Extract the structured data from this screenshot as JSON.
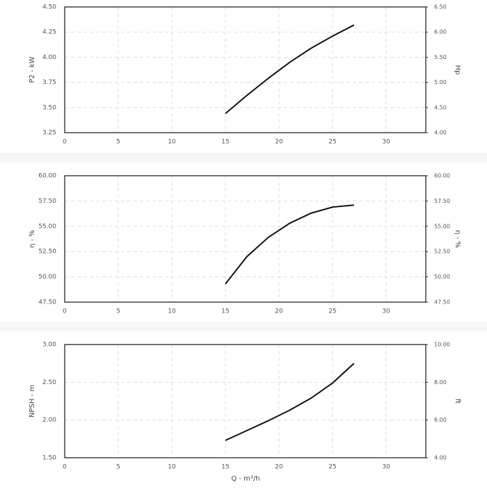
{
  "chart_data": [
    {
      "type": "line",
      "ylabel": "P2 - kW",
      "y2label": "Hp",
      "x": [
        15,
        17,
        19,
        21,
        23,
        25,
        27
      ],
      "series": [
        {
          "name": "P2",
          "color": "#111111",
          "values": [
            3.44,
            3.62,
            3.79,
            3.95,
            4.09,
            4.21,
            4.32
          ]
        }
      ],
      "xlim": [
        0,
        33.7
      ],
      "xticks": [
        0,
        5,
        10,
        15,
        20,
        25,
        30
      ],
      "ylim": [
        3.25,
        4.5
      ],
      "yticks": [
        {
          "value": 3.25,
          "label": "3.25"
        },
        {
          "value": 3.5,
          "label": "3.50"
        },
        {
          "value": 3.75,
          "label": "3.75"
        },
        {
          "value": 4,
          "label": "4.00"
        },
        {
          "value": 4.25,
          "label": "4.25"
        },
        {
          "value": 4.5,
          "label": "4.50"
        }
      ],
      "y2lim": [
        4,
        6.5
      ],
      "y2ticks": [
        {
          "value": 4,
          "label": "4.00"
        },
        {
          "value": 4.5,
          "label": "4.50"
        },
        {
          "value": 5,
          "label": "5.00"
        },
        {
          "value": 5.5,
          "label": "5.50"
        },
        {
          "value": 6,
          "label": "6.00"
        },
        {
          "value": 6.5,
          "label": "6.50"
        }
      ],
      "grid": true
    },
    {
      "type": "line",
      "ylabel": "η - %",
      "y2label": "η - %",
      "x": [
        15,
        17,
        19,
        21,
        23,
        25,
        27
      ],
      "series": [
        {
          "name": "η",
          "color": "#111111",
          "values": [
            49.3,
            52.0,
            53.9,
            55.3,
            56.3,
            56.9,
            57.1
          ]
        }
      ],
      "xlim": [
        0,
        33.7
      ],
      "xticks": [
        0,
        5,
        10,
        15,
        20,
        25,
        30
      ],
      "ylim": [
        47.5,
        60
      ],
      "yticks": [
        {
          "value": 47.5,
          "label": "47.50"
        },
        {
          "value": 50,
          "label": "50.00"
        },
        {
          "value": 52.5,
          "label": "52.50"
        },
        {
          "value": 55,
          "label": "55.00"
        },
        {
          "value": 57.5,
          "label": "57.50"
        },
        {
          "value": 60,
          "label": "60.00"
        }
      ],
      "y2lim": [
        47.5,
        60
      ],
      "y2ticks": [
        {
          "value": 47.5,
          "label": "47.50"
        },
        {
          "value": 50,
          "label": "50.00"
        },
        {
          "value": 52.5,
          "label": "52.50"
        },
        {
          "value": 55,
          "label": "55.00"
        },
        {
          "value": 57.5,
          "label": "57.50"
        },
        {
          "value": 60,
          "label": "60.00"
        }
      ],
      "grid": true
    },
    {
      "type": "line",
      "ylabel": "NPSH - m",
      "y2label": "ft",
      "xlabel": "Q - m³/h",
      "x": [
        15,
        17,
        19,
        21,
        23,
        25,
        27
      ],
      "series": [
        {
          "name": "NPSH",
          "color": "#111111",
          "values": [
            1.73,
            1.86,
            1.99,
            2.13,
            2.29,
            2.49,
            2.75
          ]
        }
      ],
      "xlim": [
        0,
        33.7
      ],
      "xticks": [
        0,
        5,
        10,
        15,
        20,
        25,
        30
      ],
      "ylim": [
        1.5,
        3
      ],
      "yticks": [
        {
          "value": 1.5,
          "label": "1.50"
        },
        {
          "value": 2,
          "label": "2.00"
        },
        {
          "value": 2.5,
          "label": "2.50"
        },
        {
          "value": 3,
          "label": "3.00"
        }
      ],
      "y2lim": [
        4,
        10
      ],
      "y2ticks": [
        {
          "value": 4,
          "label": "4.00"
        },
        {
          "value": 6,
          "label": "6.00"
        },
        {
          "value": 8,
          "label": "8.00"
        },
        {
          "value": 10,
          "label": "10.00"
        }
      ],
      "grid": true
    }
  ]
}
